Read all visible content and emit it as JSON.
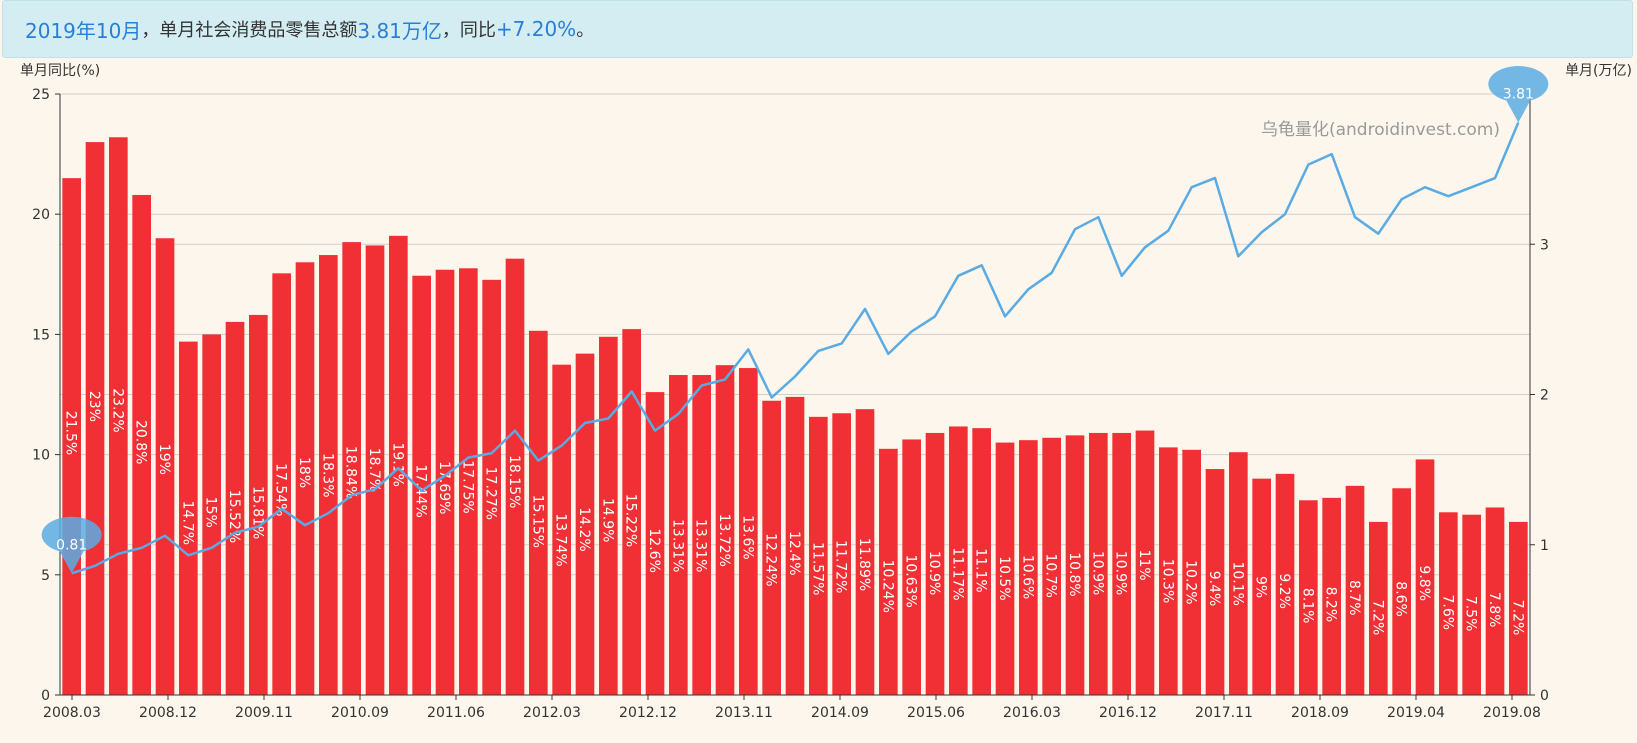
{
  "banner": {
    "period": "2019年10月",
    "label1": "，单月社会消费品零售总额 ",
    "amount": "3.81万亿",
    "label2": "，同比 ",
    "yoy": "+7.20%",
    "end": "。"
  },
  "watermark": "乌龟量化(androidinvest.com)",
  "chart_data": {
    "type": "bar+line",
    "left_axis": {
      "label": "单月同比(%)",
      "min": 0,
      "max": 25,
      "ticks": [
        0,
        5,
        10,
        15,
        20,
        25
      ]
    },
    "right_axis": {
      "label": "单月(万亿)",
      "min": 0,
      "max": 4,
      "ticks": [
        0,
        1,
        2,
        3
      ]
    },
    "x_tick_labels": [
      "2008.03",
      "2008.12",
      "2009.11",
      "2010.09",
      "2011.06",
      "2012.03",
      "2012.12",
      "2013.11",
      "2014.09",
      "2015.06",
      "2016.03",
      "2016.12",
      "2017.11",
      "2018.09",
      "2019.04",
      "2019.08"
    ],
    "bar_labels": [
      "21.5%",
      "23%",
      "23.2%",
      "20.8%",
      "19%",
      "14.7%",
      "15%",
      "15.52%",
      "15.81%",
      "17.54%",
      "18%",
      "18.3%",
      "18.84%",
      "18.7%",
      "19.1%",
      "17.44%",
      "17.69%",
      "17.75%",
      "17.27%",
      "18.15%",
      "15.15%",
      "13.74%",
      "14.2%",
      "14.9%",
      "15.22%",
      "12.6%",
      "13.31%",
      "13.31%",
      "13.72%",
      "13.6%",
      "12.24%",
      "12.4%",
      "11.57%",
      "11.72%",
      "11.89%",
      "10.24%",
      "10.63%",
      "10.9%",
      "11.17%",
      "11.1%",
      "10.5%",
      "10.6%",
      "10.7%",
      "10.8%",
      "10.9%",
      "10.9%",
      "11%",
      "10.3%",
      "10.2%",
      "9.4%",
      "10.1%",
      "9%",
      "9.2%",
      "8.1%",
      "8.2%",
      "8.7%",
      "7.2%",
      "8.6%",
      "9.8%",
      "7.6%",
      "7.5%",
      "7.8%",
      "7.2%"
    ],
    "series": [
      {
        "type": "bar",
        "axis": "left",
        "color": "#f03035",
        "values": [
          21.5,
          23,
          23.2,
          20.8,
          19,
          14.7,
          15,
          15.52,
          15.81,
          17.54,
          18,
          18.3,
          18.84,
          18.7,
          19.1,
          17.44,
          17.69,
          17.75,
          17.27,
          18.15,
          15.15,
          13.74,
          14.2,
          14.9,
          15.22,
          12.6,
          13.31,
          13.31,
          13.72,
          13.6,
          12.24,
          12.4,
          11.57,
          11.72,
          11.89,
          10.24,
          10.63,
          10.9,
          11.17,
          11.1,
          10.5,
          10.6,
          10.7,
          10.8,
          10.9,
          10.9,
          11,
          10.3,
          10.2,
          9.4,
          10.1,
          9,
          9.2,
          8.1,
          8.2,
          8.7,
          7.2,
          8.6,
          9.8,
          7.6,
          7.5,
          7.8,
          7.2
        ]
      },
      {
        "type": "line",
        "axis": "right",
        "color": "#5aabe3",
        "values": [
          0.81,
          0.86,
          0.94,
          0.98,
          1.06,
          0.93,
          0.98,
          1.08,
          1.12,
          1.24,
          1.13,
          1.21,
          1.33,
          1.37,
          1.51,
          1.36,
          1.46,
          1.58,
          1.61,
          1.76,
          1.56,
          1.66,
          1.81,
          1.84,
          2.02,
          1.76,
          1.87,
          2.06,
          2.1,
          2.3,
          1.98,
          2.12,
          2.29,
          2.34,
          2.57,
          2.27,
          2.42,
          2.52,
          2.79,
          2.86,
          2.52,
          2.7,
          2.81,
          3.1,
          3.18,
          2.79,
          2.98,
          3.09,
          3.38,
          3.44,
          2.92,
          3.08,
          3.2,
          3.53,
          3.6,
          3.18,
          3.07,
          3.3,
          3.38,
          3.32,
          3.38,
          3.44,
          3.81
        ]
      }
    ],
    "markers": [
      {
        "label": "0.81",
        "index": 0,
        "value": 0.81
      },
      {
        "label": "3.81",
        "index": 62,
        "value": 3.81
      }
    ]
  }
}
